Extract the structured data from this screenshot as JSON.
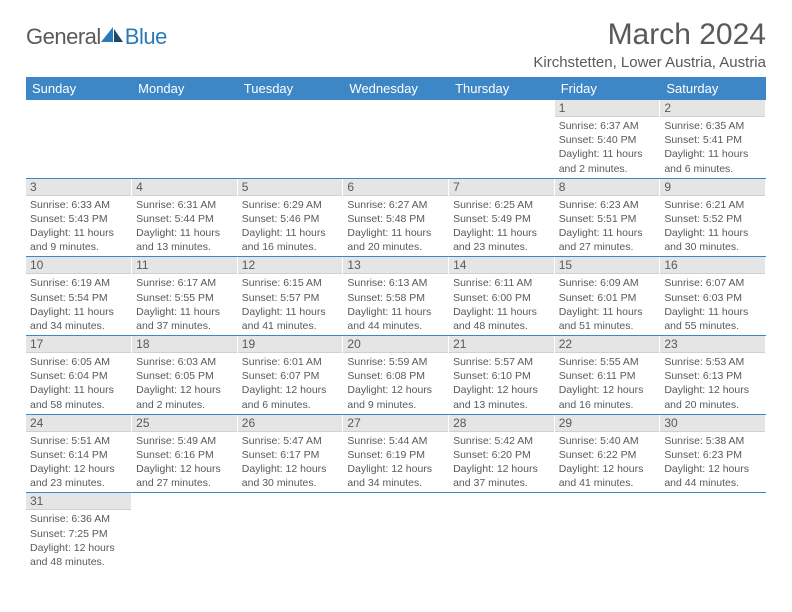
{
  "logo": {
    "general": "General",
    "blue": "Blue"
  },
  "title": "March 2024",
  "location": "Kirchstetten, Lower Austria, Austria",
  "colors": {
    "header_bg": "#3d87c7",
    "daynum_bg": "#e5e5e5",
    "text": "#595959",
    "logo_blue": "#2b7ab8"
  },
  "day_headers": [
    "Sunday",
    "Monday",
    "Tuesday",
    "Wednesday",
    "Thursday",
    "Friday",
    "Saturday"
  ],
  "weeks": [
    [
      {
        "blank": true
      },
      {
        "blank": true
      },
      {
        "blank": true
      },
      {
        "blank": true
      },
      {
        "blank": true
      },
      {
        "n": "1",
        "sr": "Sunrise: 6:37 AM",
        "ss": "Sunset: 5:40 PM",
        "dl": "Daylight: 11 hours and 2 minutes."
      },
      {
        "n": "2",
        "sr": "Sunrise: 6:35 AM",
        "ss": "Sunset: 5:41 PM",
        "dl": "Daylight: 11 hours and 6 minutes."
      }
    ],
    [
      {
        "n": "3",
        "sr": "Sunrise: 6:33 AM",
        "ss": "Sunset: 5:43 PM",
        "dl": "Daylight: 11 hours and 9 minutes."
      },
      {
        "n": "4",
        "sr": "Sunrise: 6:31 AM",
        "ss": "Sunset: 5:44 PM",
        "dl": "Daylight: 11 hours and 13 minutes."
      },
      {
        "n": "5",
        "sr": "Sunrise: 6:29 AM",
        "ss": "Sunset: 5:46 PM",
        "dl": "Daylight: 11 hours and 16 minutes."
      },
      {
        "n": "6",
        "sr": "Sunrise: 6:27 AM",
        "ss": "Sunset: 5:48 PM",
        "dl": "Daylight: 11 hours and 20 minutes."
      },
      {
        "n": "7",
        "sr": "Sunrise: 6:25 AM",
        "ss": "Sunset: 5:49 PM",
        "dl": "Daylight: 11 hours and 23 minutes."
      },
      {
        "n": "8",
        "sr": "Sunrise: 6:23 AM",
        "ss": "Sunset: 5:51 PM",
        "dl": "Daylight: 11 hours and 27 minutes."
      },
      {
        "n": "9",
        "sr": "Sunrise: 6:21 AM",
        "ss": "Sunset: 5:52 PM",
        "dl": "Daylight: 11 hours and 30 minutes."
      }
    ],
    [
      {
        "n": "10",
        "sr": "Sunrise: 6:19 AM",
        "ss": "Sunset: 5:54 PM",
        "dl": "Daylight: 11 hours and 34 minutes."
      },
      {
        "n": "11",
        "sr": "Sunrise: 6:17 AM",
        "ss": "Sunset: 5:55 PM",
        "dl": "Daylight: 11 hours and 37 minutes."
      },
      {
        "n": "12",
        "sr": "Sunrise: 6:15 AM",
        "ss": "Sunset: 5:57 PM",
        "dl": "Daylight: 11 hours and 41 minutes."
      },
      {
        "n": "13",
        "sr": "Sunrise: 6:13 AM",
        "ss": "Sunset: 5:58 PM",
        "dl": "Daylight: 11 hours and 44 minutes."
      },
      {
        "n": "14",
        "sr": "Sunrise: 6:11 AM",
        "ss": "Sunset: 6:00 PM",
        "dl": "Daylight: 11 hours and 48 minutes."
      },
      {
        "n": "15",
        "sr": "Sunrise: 6:09 AM",
        "ss": "Sunset: 6:01 PM",
        "dl": "Daylight: 11 hours and 51 minutes."
      },
      {
        "n": "16",
        "sr": "Sunrise: 6:07 AM",
        "ss": "Sunset: 6:03 PM",
        "dl": "Daylight: 11 hours and 55 minutes."
      }
    ],
    [
      {
        "n": "17",
        "sr": "Sunrise: 6:05 AM",
        "ss": "Sunset: 6:04 PM",
        "dl": "Daylight: 11 hours and 58 minutes."
      },
      {
        "n": "18",
        "sr": "Sunrise: 6:03 AM",
        "ss": "Sunset: 6:05 PM",
        "dl": "Daylight: 12 hours and 2 minutes."
      },
      {
        "n": "19",
        "sr": "Sunrise: 6:01 AM",
        "ss": "Sunset: 6:07 PM",
        "dl": "Daylight: 12 hours and 6 minutes."
      },
      {
        "n": "20",
        "sr": "Sunrise: 5:59 AM",
        "ss": "Sunset: 6:08 PM",
        "dl": "Daylight: 12 hours and 9 minutes."
      },
      {
        "n": "21",
        "sr": "Sunrise: 5:57 AM",
        "ss": "Sunset: 6:10 PM",
        "dl": "Daylight: 12 hours and 13 minutes."
      },
      {
        "n": "22",
        "sr": "Sunrise: 5:55 AM",
        "ss": "Sunset: 6:11 PM",
        "dl": "Daylight: 12 hours and 16 minutes."
      },
      {
        "n": "23",
        "sr": "Sunrise: 5:53 AM",
        "ss": "Sunset: 6:13 PM",
        "dl": "Daylight: 12 hours and 20 minutes."
      }
    ],
    [
      {
        "n": "24",
        "sr": "Sunrise: 5:51 AM",
        "ss": "Sunset: 6:14 PM",
        "dl": "Daylight: 12 hours and 23 minutes."
      },
      {
        "n": "25",
        "sr": "Sunrise: 5:49 AM",
        "ss": "Sunset: 6:16 PM",
        "dl": "Daylight: 12 hours and 27 minutes."
      },
      {
        "n": "26",
        "sr": "Sunrise: 5:47 AM",
        "ss": "Sunset: 6:17 PM",
        "dl": "Daylight: 12 hours and 30 minutes."
      },
      {
        "n": "27",
        "sr": "Sunrise: 5:44 AM",
        "ss": "Sunset: 6:19 PM",
        "dl": "Daylight: 12 hours and 34 minutes."
      },
      {
        "n": "28",
        "sr": "Sunrise: 5:42 AM",
        "ss": "Sunset: 6:20 PM",
        "dl": "Daylight: 12 hours and 37 minutes."
      },
      {
        "n": "29",
        "sr": "Sunrise: 5:40 AM",
        "ss": "Sunset: 6:22 PM",
        "dl": "Daylight: 12 hours and 41 minutes."
      },
      {
        "n": "30",
        "sr": "Sunrise: 5:38 AM",
        "ss": "Sunset: 6:23 PM",
        "dl": "Daylight: 12 hours and 44 minutes."
      }
    ],
    [
      {
        "n": "31",
        "sr": "Sunrise: 6:36 AM",
        "ss": "Sunset: 7:25 PM",
        "dl": "Daylight: 12 hours and 48 minutes."
      },
      {
        "blank": true
      },
      {
        "blank": true
      },
      {
        "blank": true
      },
      {
        "blank": true
      },
      {
        "blank": true
      },
      {
        "blank": true
      }
    ]
  ]
}
